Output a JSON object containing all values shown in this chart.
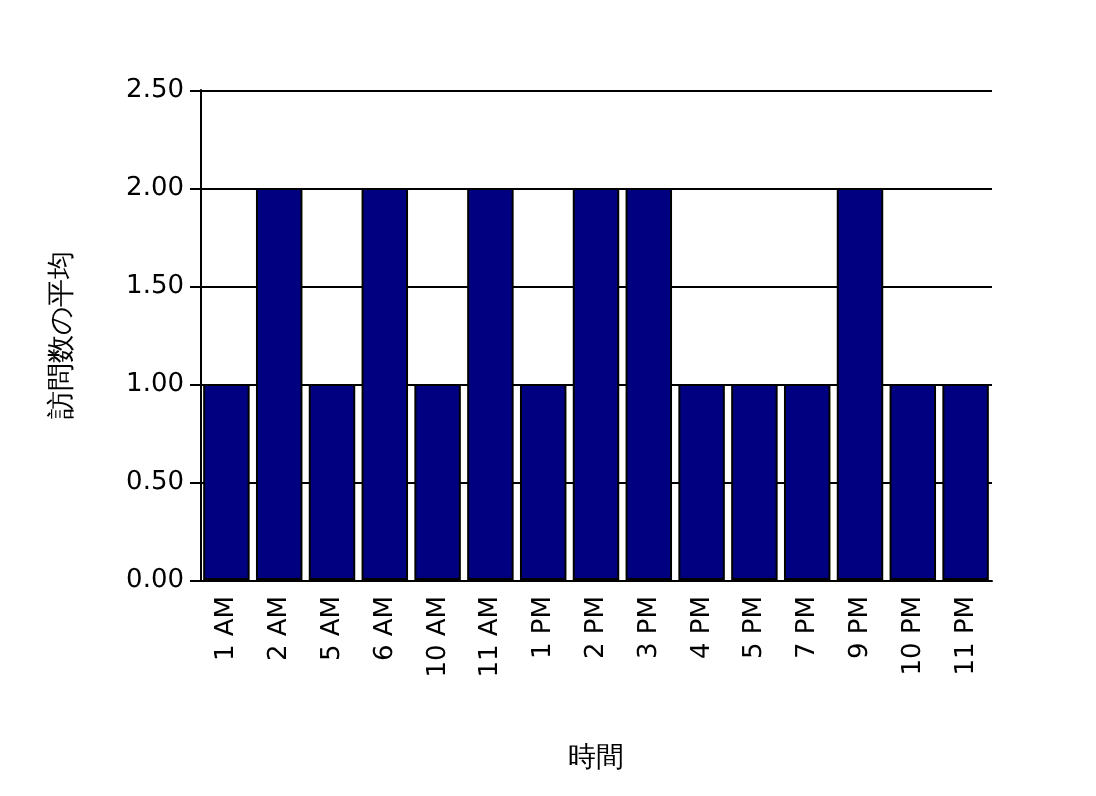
{
  "chart_data": {
    "type": "bar",
    "xlabel": "時間",
    "ylabel": "訪問数の平均",
    "categories": [
      "1 AM",
      "2 AM",
      "5 AM",
      "6 AM",
      "10 AM",
      "11 AM",
      "1 PM",
      "2 PM",
      "3 PM",
      "4 PM",
      "5 PM",
      "7 PM",
      "9 PM",
      "10 PM",
      "11 PM"
    ],
    "values": [
      1,
      2,
      1,
      2,
      1,
      2,
      1,
      2,
      2,
      1,
      1,
      1,
      2,
      1,
      1
    ],
    "color": "#000080",
    "ylim": [
      0,
      2.5
    ],
    "yticks": [
      {
        "value": 0,
        "label": "0.00"
      },
      {
        "value": 0.5,
        "label": "0.50"
      },
      {
        "value": 1,
        "label": "1.00"
      },
      {
        "value": 1.5,
        "label": "1.50"
      },
      {
        "value": 2,
        "label": "2.00"
      },
      {
        "value": 2.5,
        "label": "2.50"
      }
    ],
    "grid": true
  }
}
